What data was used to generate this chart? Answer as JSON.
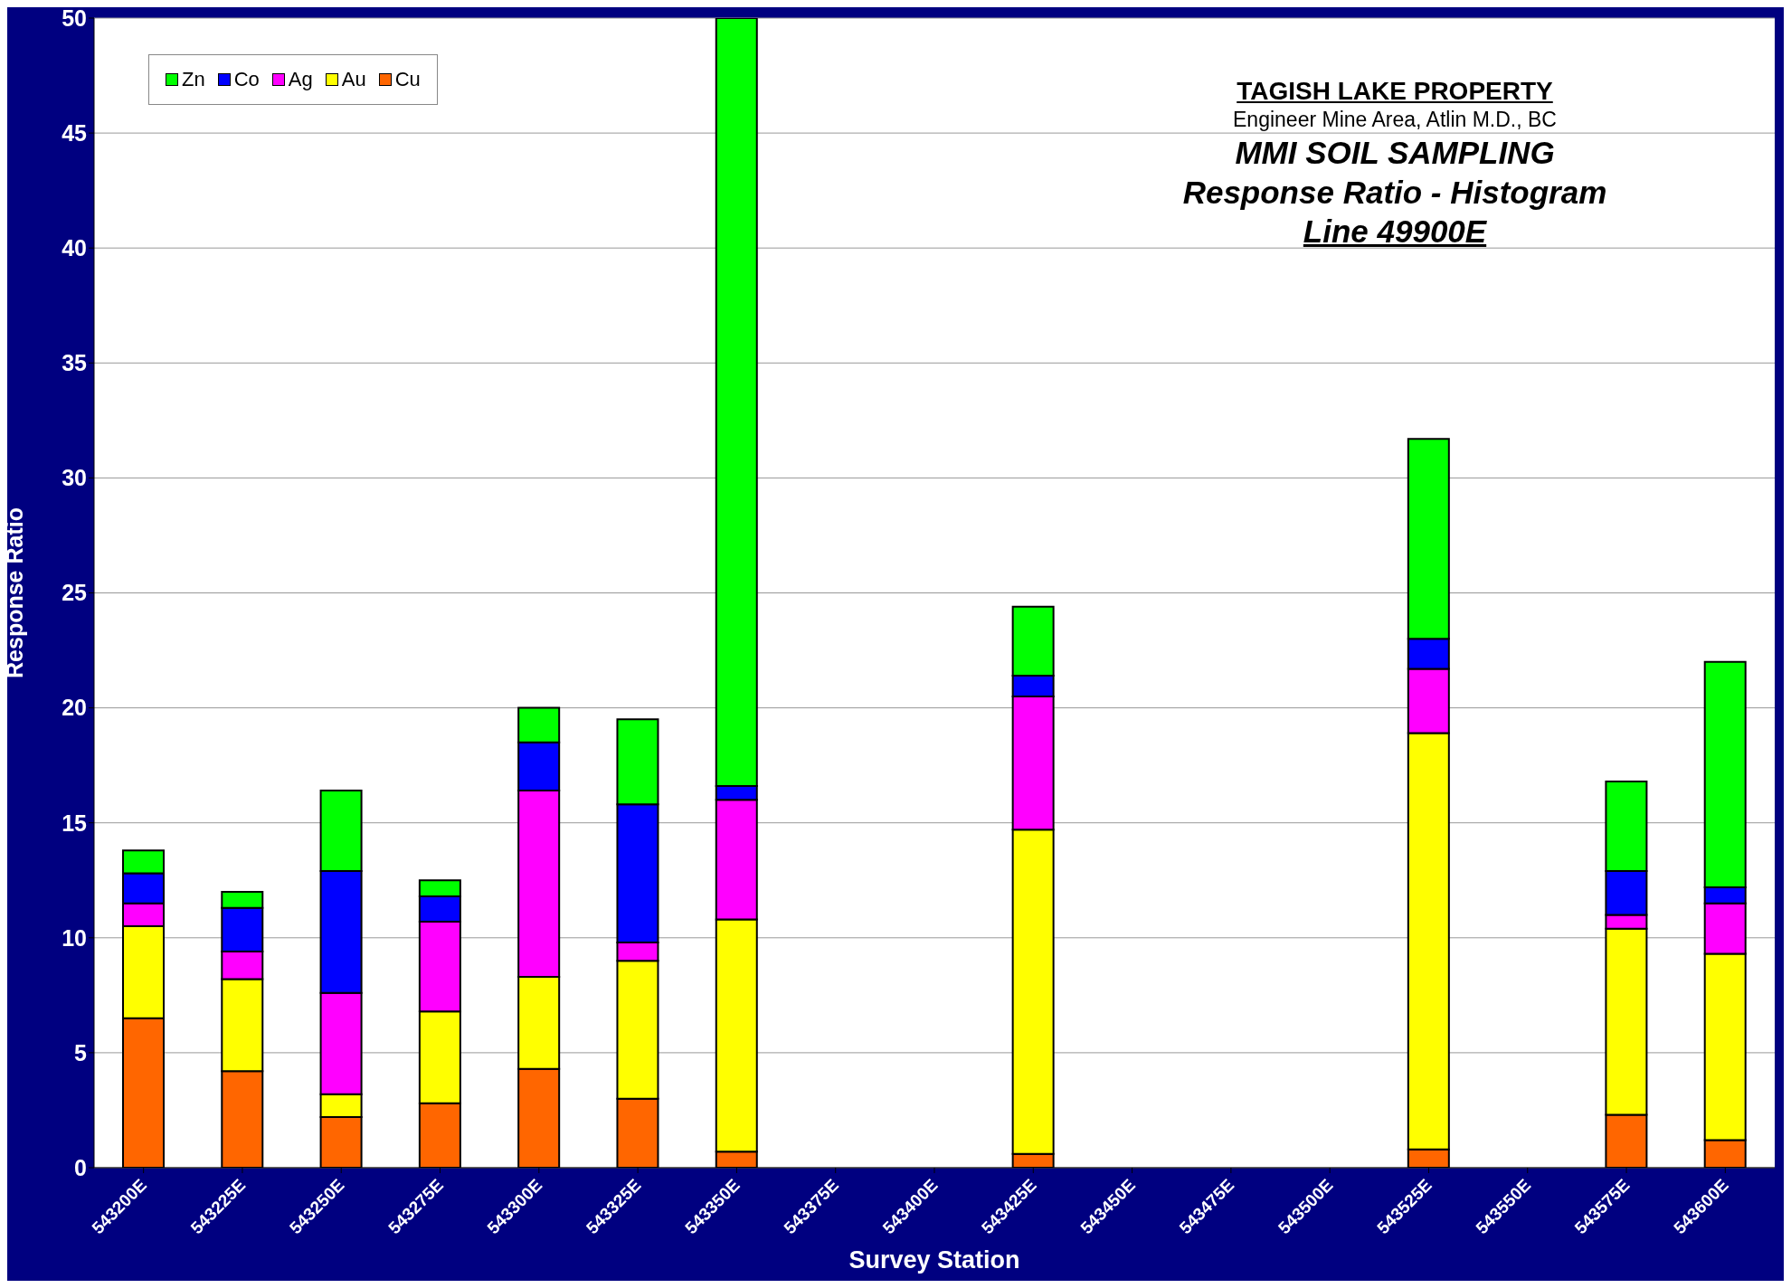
{
  "chart_data": {
    "type": "bar",
    "stacked": true,
    "title": "MMI SOIL SAMPLING",
    "subtitle": "Response Ratio - Histogram",
    "annotations": [
      "TAGISH LAKE PROPERTY",
      "Engineer Mine Area, Atlin M.D., BC",
      "Line 49900E"
    ],
    "xlabel": "Survey Station",
    "ylabel": "Response Ratio",
    "categories": [
      "543200E",
      "543225E",
      "543250E",
      "543275E",
      "543300E",
      "543325E",
      "543350E",
      "543375E",
      "543400E",
      "543425E",
      "543450E",
      "543475E",
      "543500E",
      "543525E",
      "543550E",
      "543575E",
      "543600E"
    ],
    "series": [
      {
        "name": "Cu",
        "color": "#ff6600",
        "values": [
          6.5,
          4.2,
          2.2,
          2.8,
          4.3,
          3.0,
          0.7,
          0,
          0,
          0.6,
          0,
          0,
          0,
          0.8,
          0,
          2.3,
          1.2
        ]
      },
      {
        "name": "Au",
        "color": "#ffff00",
        "values": [
          4.0,
          4.0,
          1.0,
          4.0,
          4.0,
          6.0,
          10.1,
          0,
          0,
          14.1,
          0,
          0,
          0,
          18.1,
          0,
          8.1,
          8.1
        ]
      },
      {
        "name": "Ag",
        "color": "#ff00ff",
        "values": [
          1.0,
          1.2,
          4.4,
          3.9,
          8.1,
          0.8,
          5.2,
          0,
          0,
          5.8,
          0,
          0,
          0,
          2.8,
          0,
          0.6,
          2.2
        ]
      },
      {
        "name": "Co",
        "color": "#0000ff",
        "values": [
          1.3,
          1.9,
          5.3,
          1.1,
          2.1,
          6.0,
          0.6,
          0,
          0,
          0.9,
          0,
          0,
          0,
          1.3,
          0,
          1.9,
          0.7
        ]
      },
      {
        "name": "Zn",
        "color": "#00ff00",
        "values": [
          1.0,
          0.7,
          3.5,
          0.7,
          1.5,
          3.7,
          33.4,
          0,
          0,
          3.0,
          0,
          0,
          0,
          8.7,
          0,
          3.9,
          9.8
        ]
      }
    ],
    "ylim": [
      0,
      50
    ],
    "yticks": [
      0,
      5,
      10,
      15,
      20,
      25,
      30,
      35,
      40,
      45,
      50
    ],
    "grid": "y",
    "legend": "top left"
  }
}
